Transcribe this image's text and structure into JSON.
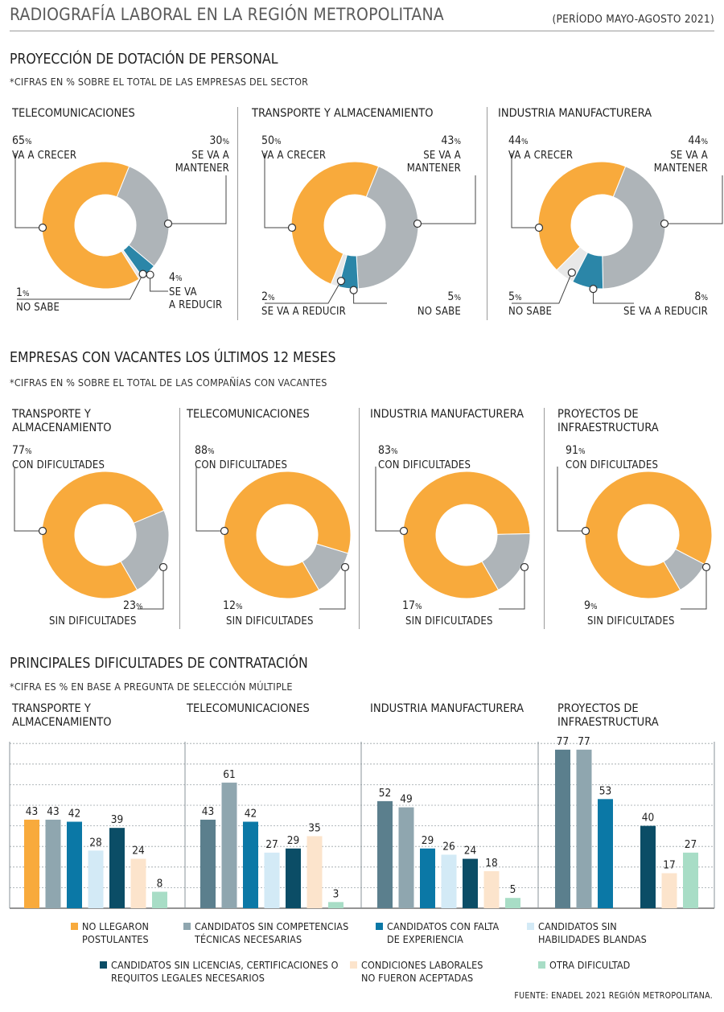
{
  "header": {
    "title": "RADIOGRAFÍA LABORAL EN LA REGIÓN METROPOLITANA",
    "period": "(PERÍODO MAYO-AGOSTO 2021)"
  },
  "colors": {
    "orange": "#F8AA3C",
    "gray": "#AEB4B8",
    "blue": "#2B86A8",
    "light": "#E8E8E8",
    "c1": "#F8AA3C",
    "c2": "#8FA6AF",
    "c3": "#0B78A6",
    "c4": "#D3EAF6",
    "c5": "#0B4D66",
    "c6": "#FCE4CC",
    "c7": "#A8DDC6",
    "c2b": "#5B7F8D"
  },
  "section1": {
    "title": "PROYECCIÓN DE DOTACIÓN DE PERSONAL",
    "note": "*CIFRAS EN % SOBRE EL TOTAL DE LAS EMPRESAS DEL SECTOR",
    "panels": [
      {
        "title": "TELECOMUNICACIONES",
        "crecer": {
          "pct": "65",
          "label": "VA A CRECER"
        },
        "mantener": {
          "pct": "30",
          "label1": "SE VA A",
          "label2": "MANTENER"
        },
        "bl": {
          "pct": "1",
          "label1": "NO SABE",
          "label2": ""
        },
        "br": {
          "pct": "4",
          "label1": "SE VA",
          "label2": "A REDUCIR"
        }
      },
      {
        "title": "TRANSPORTE Y ALMACENAMIENTO",
        "crecer": {
          "pct": "50",
          "label": "VA A CRECER"
        },
        "mantener": {
          "pct": "43",
          "label1": "SE VA A",
          "label2": "MANTENER"
        },
        "bl": {
          "pct": "2",
          "label1": "SE VA A REDUCIR",
          "label2": ""
        },
        "br": {
          "pct": "5",
          "label1": "NO SABE",
          "label2": ""
        }
      },
      {
        "title": "INDUSTRIA MANUFACTURERA",
        "crecer": {
          "pct": "44",
          "label": "VA A CRECER"
        },
        "mantener": {
          "pct": "44",
          "label1": "SE VA A",
          "label2": "MANTENER"
        },
        "bl": {
          "pct": "5",
          "label1": "NO SABE",
          "label2": ""
        },
        "br": {
          "pct": "8",
          "label1": "SE VA A REDUCIR",
          "label2": ""
        }
      }
    ]
  },
  "section2": {
    "title": "EMPRESAS CON VACANTES LOS ÚLTIMOS 12 MESES",
    "note": "*CIFRAS EN % SOBRE EL TOTAL DE LAS COMPAÑÍAS CON VACANTES",
    "con_label": "CON DIFICULTADES",
    "sin_label": "SIN DIFICULTADES",
    "panels": [
      {
        "title1": "TRANSPORTE Y",
        "title2": "ALMACENAMIENTO",
        "con": "77",
        "sin": "23"
      },
      {
        "title1": "TELECOMUNICACIONES",
        "title2": "",
        "con": "88",
        "sin": "12"
      },
      {
        "title1": "INDUSTRIA MANUFACTURERA",
        "title2": "",
        "con": "83",
        "sin": "17"
      },
      {
        "title1": "PROYECTOS DE",
        "title2": "INFRAESTRUCTURA",
        "con": "91",
        "sin": "9"
      }
    ]
  },
  "section3": {
    "title": "PRINCIPALES DIFICULTADES DE CONTRATACIÓN",
    "note": "*CIFRA ES % EN BASE A PREGUNTA DE SELECCIÓN MÚLTIPLE",
    "panels": [
      {
        "title1": "TRANSPORTE Y",
        "title2": "ALMACENAMIENTO"
      },
      {
        "title1": "TELECOMUNICACIONES",
        "title2": ""
      },
      {
        "title1": "INDUSTRIA MANUFACTURERA",
        "title2": ""
      },
      {
        "title1": "PROYECTOS DE",
        "title2": "INFRAESTRUCTURA"
      }
    ],
    "legend": [
      {
        "l1": "NO LLEGARON",
        "l2": "POSTULANTES"
      },
      {
        "l1": "CANDIDATOS SIN COMPETENCIAS",
        "l2": "TÉCNICAS NECESARIAS"
      },
      {
        "l1": "CANDIDATOS CON FALTA",
        "l2": "DE EXPERIENCIA"
      },
      {
        "l1": "CANDIDATOS SIN",
        "l2": "HABILIDADES BLANDAS"
      },
      {
        "l1": "CANDIDATOS SIN LICENCIAS, CERTIFICACIONES O",
        "l2": "REQUITOS LEGALES NECESARIOS"
      },
      {
        "l1": "CONDICIONES LABORALES",
        "l2": "NO FUERON ACEPTADAS"
      },
      {
        "l1": "OTRA DIFICULTAD",
        "l2": ""
      }
    ]
  },
  "source": "FUENTE: ENADEL 2021 REGIÓN METROPOLITANA.",
  "chart_data": [
    {
      "type": "pie",
      "title": "TELECOMUNICACIONES",
      "labels": [
        "VA A CRECER",
        "SE VA A MANTENER",
        "SE VA A REDUCIR",
        "NO SABE"
      ],
      "values": [
        65,
        30,
        4,
        1
      ]
    },
    {
      "type": "pie",
      "title": "TRANSPORTE Y ALMACENAMIENTO",
      "labels": [
        "VA A CRECER",
        "SE VA A MANTENER",
        "NO SABE",
        "SE VA A REDUCIR"
      ],
      "values": [
        50,
        43,
        5,
        2
      ]
    },
    {
      "type": "pie",
      "title": "INDUSTRIA MANUFACTURERA",
      "labels": [
        "VA A CRECER",
        "SE VA A MANTENER",
        "SE VA A REDUCIR",
        "NO SABE"
      ],
      "values": [
        44,
        44,
        8,
        5
      ]
    },
    {
      "type": "pie",
      "title": "TRANSPORTE Y ALMACENAMIENTO",
      "labels": [
        "CON DIFICULTADES",
        "SIN DIFICULTADES"
      ],
      "values": [
        77,
        23
      ]
    },
    {
      "type": "pie",
      "title": "TELECOMUNICACIONES",
      "labels": [
        "CON DIFICULTADES",
        "SIN DIFICULTADES"
      ],
      "values": [
        88,
        12
      ]
    },
    {
      "type": "pie",
      "title": "INDUSTRIA MANUFACTURERA",
      "labels": [
        "CON DIFICULTADES",
        "SIN DIFICULTADES"
      ],
      "values": [
        83,
        17
      ]
    },
    {
      "type": "pie",
      "title": "PROYECTOS DE INFRAESTRUCTURA",
      "labels": [
        "CON DIFICULTADES",
        "SIN DIFICULTADES"
      ],
      "values": [
        91,
        9
      ]
    },
    {
      "type": "bar",
      "title": "PRINCIPALES DIFICULTADES DE CONTRATACIÓN",
      "categories": [
        "TRANSPORTE Y ALMACENAMIENTO",
        "TELECOMUNICACIONES",
        "INDUSTRIA MANUFACTURERA",
        "PROYECTOS DE INFRAESTRUCTURA"
      ],
      "ylim": [
        0,
        80
      ],
      "grid": true,
      "series": [
        {
          "name": "NO LLEGARON POSTULANTES",
          "values": [
            43,
            null,
            null,
            null
          ]
        },
        {
          "name": "CANDIDATOS SIN COMPETENCIAS TÉCNICAS NECESARIAS",
          "values": [
            43,
            43,
            52,
            77
          ]
        },
        {
          "name": "CANDIDATOS CON FALTA DE EXPERIENCIA",
          "values": [
            42,
            61,
            49,
            77
          ]
        },
        {
          "name": "CANDIDATOS SIN HABILIDADES BLANDAS",
          "values": [
            28,
            42,
            29,
            53
          ]
        },
        {
          "name": "CANDIDATOS SIN LICENCIAS, CERTIFICACIONES O REQUITOS LEGALES NECESARIOS",
          "values": [
            39,
            27,
            26,
            null
          ]
        },
        {
          "name": "CONDICIONES LABORALES NO FUERON ACEPTADAS",
          "values": [
            24,
            29,
            24,
            40
          ]
        },
        {
          "name": "OTRA DIFICULTAD",
          "values": [
            8,
            35,
            18,
            17
          ]
        },
        {
          "name": "",
          "values": [
            null,
            3,
            5,
            27
          ]
        }
      ]
    }
  ]
}
